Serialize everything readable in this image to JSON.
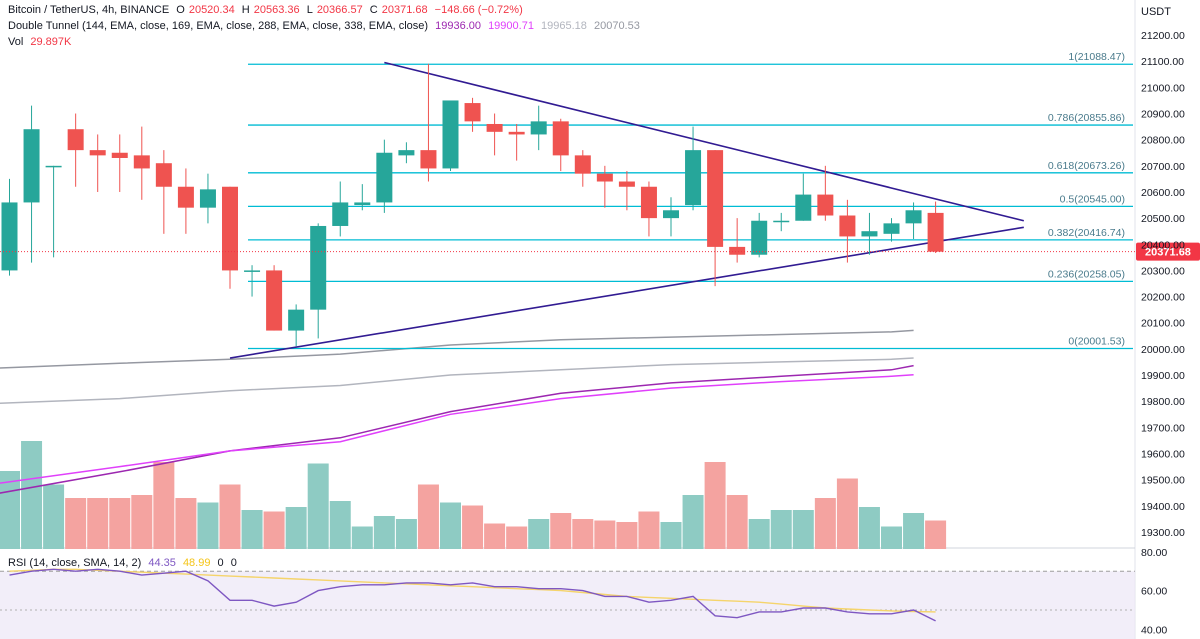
{
  "header": {
    "symbol": "Bitcoin / TetherUS, 4h, BINANCE",
    "o_label": "O",
    "o_value": "20520.34",
    "h_label": "H",
    "h_value": "20563.36",
    "l_label": "L",
    "l_value": "20366.57",
    "c_label": "C",
    "c_value": "20371.68",
    "change": "−148.66 (−0.72%)",
    "ema_label": "Double Tunnel (144, EMA, close, 169, EMA, close, 288, EMA, close, 338, EMA, close)",
    "ema_values": [
      "19936.00",
      "19900.71",
      "19965.18",
      "20070.53"
    ],
    "ema_colors": [
      "#9c27b0",
      "#e040fb",
      "#b2b5be",
      "#9598a1"
    ],
    "vol_label": "Vol",
    "vol_value": "29.897K",
    "rsi_label": "RSI (14, close, SMA, 14, 2)",
    "rsi_value": "44.35",
    "rsi_sma_value": "48.99",
    "rsi_extra1": "0",
    "rsi_extra2": "0"
  },
  "colors": {
    "up": "#26a69a",
    "down": "#ef5350",
    "up_vol": "#8ecbc3",
    "down_vol": "#f4a3a0",
    "fib": "#00bcd4",
    "trend": "#311b92",
    "rsi": "#7e57c2",
    "rsi_sma": "#f5d46b",
    "price_tag": "#f23645"
  },
  "chart_data": {
    "type": "candlestick",
    "title": "Bitcoin / TetherUS, 4h, BINANCE",
    "y_unit": "USDT",
    "ylim": [
      19250,
      21250
    ],
    "ytick_labels": [
      "21200.00",
      "21100.00",
      "21000.00",
      "20900.00",
      "20800.00",
      "20700.00",
      "20600.00",
      "20500.00",
      "20400.00",
      "20300.00",
      "20200.00",
      "20100.00",
      "20000.00",
      "19900.00",
      "19800.00",
      "19700.00",
      "19600.00",
      "19500.00",
      "19400.00",
      "19300.00"
    ],
    "yticks": [
      21200,
      21100,
      21000,
      20900,
      20800,
      20700,
      20600,
      20500,
      20400,
      20300,
      20200,
      20100,
      20000,
      19900,
      19800,
      19700,
      19600,
      19500,
      19400,
      19300
    ],
    "last_price": 20371.68,
    "last_price_label": "20371.68",
    "candles": [
      {
        "o": 20300,
        "h": 20650,
        "l": 20280,
        "c": 20560
      },
      {
        "o": 20560,
        "h": 20930,
        "l": 20330,
        "c": 20840
      },
      {
        "o": 20700,
        "h": 20700,
        "l": 20350,
        "c": 20700
      },
      {
        "o": 20840,
        "h": 20900,
        "l": 20620,
        "c": 20760
      },
      {
        "o": 20760,
        "h": 20820,
        "l": 20600,
        "c": 20740
      },
      {
        "o": 20750,
        "h": 20820,
        "l": 20600,
        "c": 20730
      },
      {
        "o": 20740,
        "h": 20850,
        "l": 20570,
        "c": 20690
      },
      {
        "o": 20710,
        "h": 20760,
        "l": 20440,
        "c": 20620
      },
      {
        "o": 20620,
        "h": 20690,
        "l": 20440,
        "c": 20540
      },
      {
        "o": 20540,
        "h": 20670,
        "l": 20480,
        "c": 20610
      },
      {
        "o": 20620,
        "h": 20620,
        "l": 20230,
        "c": 20300
      },
      {
        "o": 20300,
        "h": 20320,
        "l": 20200,
        "c": 20300
      },
      {
        "o": 20300,
        "h": 20320,
        "l": 20070,
        "c": 20070
      },
      {
        "o": 20070,
        "h": 20170,
        "l": 20010,
        "c": 20150
      },
      {
        "o": 20150,
        "h": 20480,
        "l": 20040,
        "c": 20470
      },
      {
        "o": 20470,
        "h": 20640,
        "l": 20430,
        "c": 20560
      },
      {
        "o": 20550,
        "h": 20630,
        "l": 20530,
        "c": 20560
      },
      {
        "o": 20560,
        "h": 20800,
        "l": 20520,
        "c": 20750
      },
      {
        "o": 20740,
        "h": 20790,
        "l": 20710,
        "c": 20760
      },
      {
        "o": 20760,
        "h": 21090,
        "l": 20640,
        "c": 20690
      },
      {
        "o": 20690,
        "h": 20950,
        "l": 20680,
        "c": 20950
      },
      {
        "o": 20940,
        "h": 20960,
        "l": 20830,
        "c": 20870
      },
      {
        "o": 20860,
        "h": 20900,
        "l": 20740,
        "c": 20830
      },
      {
        "o": 20830,
        "h": 20860,
        "l": 20720,
        "c": 20820
      },
      {
        "o": 20820,
        "h": 20930,
        "l": 20760,
        "c": 20870
      },
      {
        "o": 20870,
        "h": 20880,
        "l": 20680,
        "c": 20740
      },
      {
        "o": 20740,
        "h": 20760,
        "l": 20620,
        "c": 20670
      },
      {
        "o": 20670,
        "h": 20700,
        "l": 20540,
        "c": 20640
      },
      {
        "o": 20640,
        "h": 20680,
        "l": 20530,
        "c": 20620
      },
      {
        "o": 20620,
        "h": 20640,
        "l": 20430,
        "c": 20500
      },
      {
        "o": 20500,
        "h": 20580,
        "l": 20430,
        "c": 20530
      },
      {
        "o": 20550,
        "h": 20850,
        "l": 20530,
        "c": 20760
      },
      {
        "o": 20760,
        "h": 20760,
        "l": 20240,
        "c": 20390
      },
      {
        "o": 20390,
        "h": 20500,
        "l": 20330,
        "c": 20360
      },
      {
        "o": 20360,
        "h": 20520,
        "l": 20350,
        "c": 20490
      },
      {
        "o": 20490,
        "h": 20520,
        "l": 20450,
        "c": 20490
      },
      {
        "o": 20490,
        "h": 20670,
        "l": 20490,
        "c": 20590
      },
      {
        "o": 20590,
        "h": 20700,
        "l": 20490,
        "c": 20510
      },
      {
        "o": 20510,
        "h": 20570,
        "l": 20330,
        "c": 20430
      },
      {
        "o": 20430,
        "h": 20520,
        "l": 20360,
        "c": 20450
      },
      {
        "o": 20440,
        "h": 20500,
        "l": 20410,
        "c": 20480
      },
      {
        "o": 20480,
        "h": 20560,
        "l": 20420,
        "c": 20530
      },
      {
        "o": 20520,
        "h": 20563.36,
        "l": 20366.57,
        "c": 20371.68
      }
    ],
    "volume_ratio": [
      0.52,
      0.72,
      0.43,
      0.34,
      0.34,
      0.34,
      0.36,
      0.58,
      0.34,
      0.31,
      0.43,
      0.26,
      0.25,
      0.28,
      0.57,
      0.32,
      0.15,
      0.22,
      0.2,
      0.43,
      0.31,
      0.29,
      0.17,
      0.15,
      0.2,
      0.24,
      0.2,
      0.19,
      0.18,
      0.25,
      0.18,
      0.36,
      0.58,
      0.36,
      0.2,
      0.26,
      0.26,
      0.34,
      0.47,
      0.28,
      0.15,
      0.24,
      0.19
    ],
    "fib_levels": [
      {
        "label": "1(21088.47)",
        "price": 21088.47
      },
      {
        "label": "0.786(20855.86)",
        "price": 20855.86
      },
      {
        "label": "0.618(20673.26)",
        "price": 20673.26
      },
      {
        "label": "0.5(20545.00)",
        "price": 20545.0
      },
      {
        "label": "0.382(20416.74)",
        "price": 20416.74
      },
      {
        "label": "0.236(20258.05)",
        "price": 20258.05
      },
      {
        "label": "0(20001.53)",
        "price": 20001.53
      }
    ],
    "trendlines": [
      {
        "name": "upper",
        "from": {
          "bar": 17.0,
          "price": 21095
        },
        "to": {
          "bar": 46.0,
          "price": 20490
        }
      },
      {
        "name": "lower",
        "from": {
          "bar": 10.0,
          "price": 19965
        },
        "to": {
          "bar": 46.0,
          "price": 20465
        }
      }
    ],
    "ema_lines": [
      {
        "name": "EMA 144",
        "color": "#9c27b0",
        "points": [
          [
            -1,
            19440
          ],
          [
            5,
            19530
          ],
          [
            10,
            19610
          ],
          [
            15,
            19660
          ],
          [
            20,
            19760
          ],
          [
            25,
            19830
          ],
          [
            30,
            19870
          ],
          [
            35,
            19895
          ],
          [
            40,
            19920
          ],
          [
            41,
            19936
          ]
        ]
      },
      {
        "name": "EMA 169",
        "color": "#e040fb",
        "points": [
          [
            -1,
            19480
          ],
          [
            5,
            19550
          ],
          [
            10,
            19610
          ],
          [
            15,
            19645
          ],
          [
            20,
            19750
          ],
          [
            25,
            19810
          ],
          [
            30,
            19850
          ],
          [
            35,
            19875
          ],
          [
            40,
            19895
          ],
          [
            41,
            19900.71
          ]
        ]
      },
      {
        "name": "EMA 288",
        "color": "#b2b5be",
        "points": [
          [
            -1,
            19790
          ],
          [
            5,
            19810
          ],
          [
            10,
            19840
          ],
          [
            15,
            19860
          ],
          [
            20,
            19900
          ],
          [
            25,
            19920
          ],
          [
            30,
            19940
          ],
          [
            35,
            19950
          ],
          [
            40,
            19960
          ],
          [
            41,
            19965.18
          ]
        ]
      },
      {
        "name": "EMA 338",
        "color": "#9598a1",
        "points": [
          [
            -1,
            19925
          ],
          [
            5,
            19945
          ],
          [
            10,
            19960
          ],
          [
            15,
            19980
          ],
          [
            20,
            20015
          ],
          [
            25,
            20035
          ],
          [
            30,
            20045
          ],
          [
            35,
            20055
          ],
          [
            40,
            20065
          ],
          [
            41,
            20070.53
          ]
        ]
      }
    ],
    "rsi": {
      "ylim": [
        35,
        82
      ],
      "tick_labels": [
        "80.00",
        "60.00",
        "40.00"
      ],
      "ticks": [
        80,
        60,
        40
      ],
      "band": [
        30,
        70
      ],
      "values": [
        68,
        70,
        71,
        70,
        71,
        70,
        68,
        69,
        70,
        65,
        55,
        55,
        52,
        54,
        60,
        62,
        63,
        63,
        64,
        64,
        63,
        64,
        62,
        62,
        61,
        61,
        60,
        57,
        57,
        54,
        55,
        57,
        47,
        46,
        49,
        49,
        51,
        51,
        49,
        48,
        48,
        50,
        44.35
      ],
      "sma": [
        70,
        70.5,
        71,
        71,
        70.5,
        70,
        69.5,
        69,
        68.5,
        68,
        67.5,
        67,
        66.5,
        66,
        65.5,
        65,
        64.5,
        64,
        63.5,
        63,
        62.5,
        62,
        61.5,
        61,
        60.5,
        60,
        59,
        58,
        57,
        56.5,
        56,
        55.5,
        55,
        54.5,
        54,
        53,
        52,
        51,
        50.5,
        50,
        49.5,
        49.2,
        48.99
      ]
    }
  }
}
